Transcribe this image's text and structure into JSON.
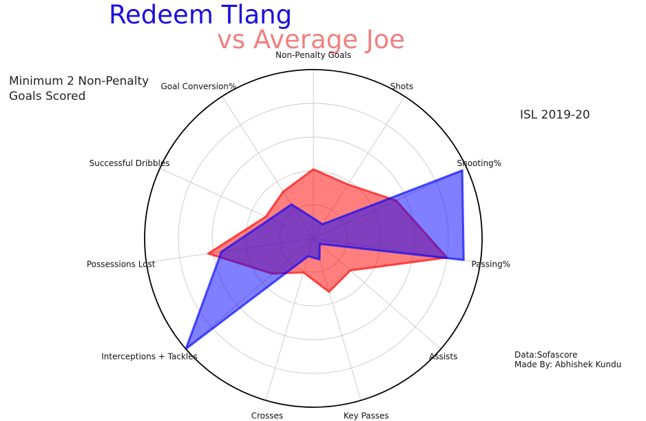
{
  "header": {
    "title": "Redeem Tlang",
    "subtitle": "vs Average Joe",
    "note": "Minimum 2 Non-Penalty Goals Scored",
    "season": "ISL 2019-20",
    "credits_source": "Data:Sofascore",
    "credits_author": "Made By: Abhishek Kundu",
    "title_color": "#1a0fdc",
    "subtitle_color": "#f08080"
  },
  "chart_data": {
    "type": "radar",
    "categories": [
      "Non-Penalty Goals",
      "Shots",
      "Shooting%",
      "Passing%",
      "Assists",
      "Key Passes",
      "Crosses",
      "Interceptions + Tackles",
      "Possessions Lost",
      "Successful Dribbles",
      "Goal Conversion%"
    ],
    "rmax": 1.0,
    "grid_rings": [
      0.2,
      0.4,
      0.6,
      0.8,
      1.0
    ],
    "grid": true,
    "series": [
      {
        "color": "#ff0000",
        "values": [
          0.41,
          0.38,
          0.54,
          0.8,
          0.29,
          0.33,
          0.21,
          0.32,
          0.63,
          0.31,
          0.33
        ]
      },
      {
        "color": "#0000ff",
        "values": [
          0.12,
          0.1,
          0.97,
          0.9,
          0.05,
          0.13,
          0.11,
          1.0,
          0.55,
          0.28,
          0.24
        ]
      }
    ]
  }
}
